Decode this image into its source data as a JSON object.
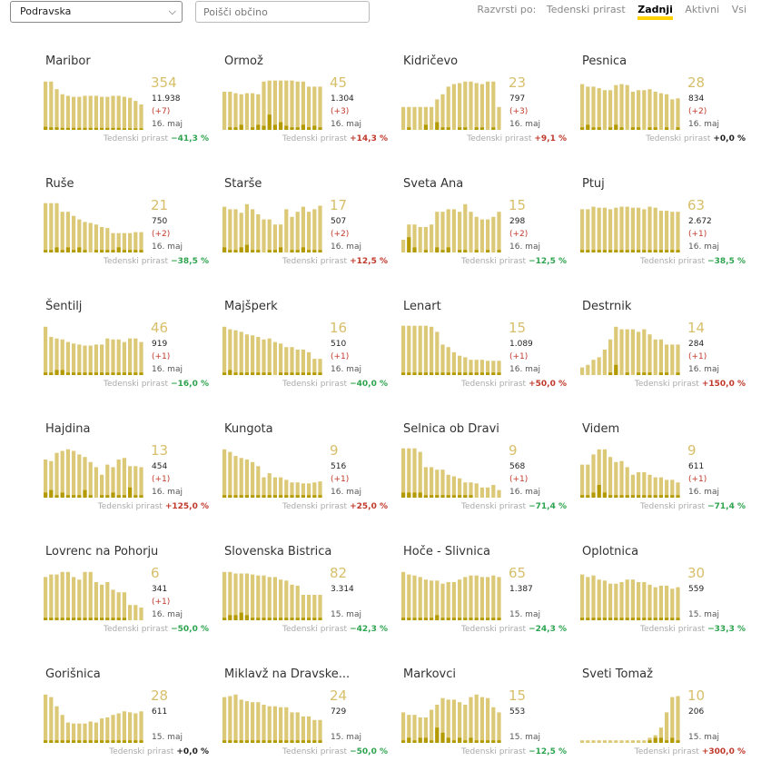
{
  "region_select": {
    "value": "Podravska"
  },
  "search": {
    "placeholder": "Poišči občino"
  },
  "sort": {
    "label": "Razvrsti po:",
    "options": [
      "Tedenski prirast",
      "Zadnji",
      "Aktivni",
      "Vsi"
    ],
    "active": 1
  },
  "week_label": "Tedenski prirast",
  "colors": {
    "active_bar": "#dcc978",
    "new_bar": "#b39a00",
    "accent": "#ffd200",
    "up": "#c0392b",
    "down": "#2ea44f"
  },
  "municipalities": [
    {
      "name": "Maribor",
      "active": "354",
      "total": "11.938",
      "delta": "(+7)",
      "date": "16. maj",
      "weekly": "−41,3 %",
      "trend": "down",
      "bars": [
        0.95,
        0.95,
        0.8,
        0.7,
        0.67,
        0.65,
        0.65,
        0.67,
        0.67,
        0.67,
        0.65,
        0.65,
        0.67,
        0.67,
        0.65,
        0.63,
        0.57,
        0.5
      ],
      "new": [
        0.06,
        0.05,
        0.05,
        0.04,
        0.04,
        0.04,
        0.04,
        0.04,
        0.04,
        0.04,
        0.04,
        0.04,
        0.04,
        0.04,
        0.03,
        0.03,
        0.03,
        0.03
      ]
    },
    {
      "name": "Ormož",
      "active": "45",
      "total": "1.304",
      "delta": "(+3)",
      "date": "16. maj",
      "weekly": "+14,3 %",
      "trend": "up",
      "bars": [
        0.75,
        0.75,
        0.72,
        0.7,
        0.72,
        0.72,
        0.7,
        0.95,
        0.97,
        0.97,
        0.97,
        0.97,
        0.97,
        0.95,
        0.95,
        0.85,
        0.85,
        0.85
      ],
      "new": [
        0,
        0.05,
        0.05,
        0.1,
        0,
        0.05,
        0.1,
        0.08,
        0.3,
        0.1,
        0.15,
        0.08,
        0.05,
        0.05,
        0.1,
        0.05,
        0.08,
        0.05
      ]
    },
    {
      "name": "Kidričevo",
      "active": "23",
      "total": "797",
      "delta": "(+3)",
      "date": "16. maj",
      "weekly": "+9,1 %",
      "trend": "up",
      "bars": [
        0.45,
        0.45,
        0.45,
        0.45,
        0.45,
        0.45,
        0.6,
        0.7,
        0.85,
        0.9,
        0.92,
        0.95,
        0.95,
        0.92,
        0.9,
        0.95,
        0.95,
        0.45
      ],
      "new": [
        0,
        0.05,
        0,
        0,
        0.1,
        0,
        0.15,
        0.05,
        0.05,
        0,
        0.05,
        0.05,
        0,
        0.05,
        0.05,
        0,
        0.05,
        0
      ]
    },
    {
      "name": "Pesnica",
      "active": "28",
      "total": "834",
      "delta": "(+2)",
      "date": "16. maj",
      "weekly": "+0,0 %",
      "trend": "zero",
      "bars": [
        0.9,
        0.85,
        0.85,
        0.82,
        0.78,
        0.78,
        0.88,
        0.9,
        0.88,
        0.75,
        0.78,
        0.78,
        0.8,
        0.75,
        0.72,
        0.7,
        0.6,
        0.62
      ],
      "new": [
        0.05,
        0.1,
        0.05,
        0.05,
        0,
        0.05,
        0.1,
        0.05,
        0,
        0.05,
        0.05,
        0,
        0.05,
        0.05,
        0,
        0.05,
        0,
        0.05
      ]
    },
    {
      "name": "Ruše",
      "active": "21",
      "total": "750",
      "delta": "(+2)",
      "date": "16. maj",
      "weekly": "−38,5 %",
      "trend": "down",
      "bars": [
        0.97,
        0.97,
        0.97,
        0.8,
        0.8,
        0.72,
        0.65,
        0.6,
        0.58,
        0.55,
        0.5,
        0.48,
        0.38,
        0.38,
        0.38,
        0.38,
        0.4,
        0.4
      ],
      "new": [
        0.05,
        0.05,
        0.1,
        0.05,
        0.1,
        0.05,
        0.1,
        0.05,
        0,
        0.05,
        0.05,
        0.05,
        0.05,
        0.1,
        0.05,
        0.05,
        0.05,
        0.05
      ]
    },
    {
      "name": "Starše",
      "active": "17",
      "total": "507",
      "delta": "(+2)",
      "date": "16. maj",
      "weekly": "+12,5 %",
      "trend": "up",
      "bars": [
        0.9,
        0.85,
        0.85,
        0.78,
        0.95,
        0.85,
        0.75,
        0.65,
        0.65,
        0.55,
        0.55,
        0.85,
        0.7,
        0.8,
        0.9,
        0.8,
        0.85,
        0.92
      ],
      "new": [
        0.1,
        0.05,
        0.05,
        0.1,
        0.15,
        0.05,
        0.05,
        0,
        0.05,
        0.05,
        0.1,
        0,
        0.05,
        0.05,
        0.1,
        0.05,
        0.05,
        0.05
      ]
    },
    {
      "name": "Sveta Ana",
      "active": "15",
      "total": "298",
      "delta": "(+2)",
      "date": "16. maj",
      "weekly": "−12,5 %",
      "trend": "down",
      "bars": [
        0.25,
        0.55,
        0.55,
        0.5,
        0.5,
        0.55,
        0.8,
        0.8,
        0.85,
        0.85,
        0.8,
        0.95,
        0.8,
        0.7,
        0.65,
        0.65,
        0.7,
        0.8
      ],
      "new": [
        0,
        0.3,
        0.1,
        0,
        0.05,
        0,
        0.1,
        0.05,
        0.1,
        0,
        0.05,
        0.05,
        0,
        0.05,
        0,
        0.05,
        0,
        0.05
      ]
    },
    {
      "name": "Ptuj",
      "active": "63",
      "total": "2.672",
      "delta": "(+1)",
      "date": "16. maj",
      "weekly": "−38,5 %",
      "trend": "down",
      "bars": [
        0.85,
        0.85,
        0.9,
        0.88,
        0.88,
        0.85,
        0.88,
        0.9,
        0.9,
        0.88,
        0.88,
        0.85,
        0.9,
        0.88,
        0.82,
        0.82,
        0.8,
        0.8
      ],
      "new": [
        0.05,
        0.05,
        0.05,
        0.05,
        0.05,
        0.05,
        0.05,
        0.05,
        0.05,
        0.05,
        0.05,
        0.05,
        0.05,
        0.05,
        0.05,
        0.05,
        0.05,
        0.05
      ]
    },
    {
      "name": "Šentilj",
      "active": "46",
      "total": "919",
      "delta": "(+1)",
      "date": "16. maj",
      "weekly": "−16,0 %",
      "trend": "down",
      "bars": [
        0.95,
        0.75,
        0.72,
        0.7,
        0.65,
        0.62,
        0.6,
        0.58,
        0.58,
        0.6,
        0.6,
        0.72,
        0.7,
        0.7,
        0.65,
        0.72,
        0.72,
        0.65
      ],
      "new": [
        0.05,
        0.05,
        0.1,
        0.1,
        0.05,
        0.05,
        0.05,
        0.05,
        0.05,
        0.05,
        0.05,
        0.05,
        0.05,
        0.05,
        0.05,
        0.05,
        0.05,
        0.05
      ]
    },
    {
      "name": "Majšperk",
      "active": "16",
      "total": "510",
      "delta": "(+1)",
      "date": "16. maj",
      "weekly": "−40,0 %",
      "trend": "down",
      "bars": [
        0.95,
        0.9,
        0.88,
        0.85,
        0.8,
        0.78,
        0.75,
        0.7,
        0.72,
        0.65,
        0.62,
        0.55,
        0.55,
        0.5,
        0.5,
        0.45,
        0.32,
        0.32
      ],
      "new": [
        0.05,
        0.1,
        0.05,
        0.05,
        0.05,
        0.05,
        0.05,
        0.05,
        0.05,
        0,
        0.05,
        0.05,
        0.05,
        0.05,
        0.05,
        0.05,
        0.05,
        0.05
      ]
    },
    {
      "name": "Lenart",
      "active": "15",
      "total": "1.089",
      "delta": "(+1)",
      "date": "16. maj",
      "weekly": "+50,0 %",
      "trend": "up",
      "bars": [
        0.97,
        0.97,
        0.97,
        0.97,
        0.97,
        0.95,
        0.85,
        0.6,
        0.55,
        0.45,
        0.38,
        0.35,
        0.3,
        0.3,
        0.3,
        0.28,
        0.28,
        0.28
      ],
      "new": [
        0.05,
        0.05,
        0.05,
        0.05,
        0.05,
        0.05,
        0.05,
        0.05,
        0.05,
        0.05,
        0.05,
        0.05,
        0.05,
        0.05,
        0.05,
        0.05,
        0.05,
        0.05
      ]
    },
    {
      "name": "Destrnik",
      "active": "14",
      "total": "284",
      "delta": "(+1)",
      "date": "16. maj",
      "weekly": "+150,0 %",
      "trend": "up",
      "bars": [
        0.15,
        0.2,
        0.3,
        0.35,
        0.5,
        0.7,
        0.95,
        0.9,
        0.9,
        0.9,
        0.85,
        0.9,
        0.8,
        0.7,
        0.7,
        0.6,
        0.6,
        0.6
      ],
      "new": [
        0,
        0,
        0,
        0,
        0,
        0.05,
        0.2,
        0,
        0.05,
        0,
        0.05,
        0.05,
        0.05,
        0,
        0.05,
        0.05,
        0,
        0.05
      ]
    },
    {
      "name": "Hajdina",
      "active": "13",
      "total": "454",
      "delta": "(+1)",
      "date": "16. maj",
      "weekly": "+125,0 %",
      "trend": "up",
      "bars": [
        0.75,
        0.72,
        0.88,
        0.92,
        0.95,
        0.92,
        0.85,
        0.8,
        0.7,
        0.6,
        0.45,
        0.65,
        0.6,
        0.75,
        0.78,
        0.62,
        0.62,
        0.6
      ],
      "new": [
        0.1,
        0.15,
        0.05,
        0.1,
        0.05,
        0.05,
        0.05,
        0.15,
        0.05,
        0,
        0.05,
        0.05,
        0.1,
        0.05,
        0.05,
        0.2,
        0.05,
        0.05
      ]
    },
    {
      "name": "Kungota",
      "active": "9",
      "total": "516",
      "delta": "(+1)",
      "date": "16. maj",
      "weekly": "+25,0 %",
      "trend": "up",
      "bars": [
        0.95,
        0.9,
        0.82,
        0.78,
        0.75,
        0.7,
        0.62,
        0.4,
        0.48,
        0.4,
        0.4,
        0.35,
        0.3,
        0.3,
        0.28,
        0.28,
        0.3,
        0.32
      ],
      "new": [
        0.05,
        0.05,
        0.05,
        0.05,
        0.05,
        0.05,
        0.05,
        0.05,
        0.05,
        0.05,
        0.05,
        0.05,
        0.05,
        0.05,
        0.05,
        0.05,
        0.05,
        0.05
      ]
    },
    {
      "name": "Selnica ob Dravi",
      "active": "9",
      "total": "568",
      "delta": "(+1)",
      "date": "16. maj",
      "weekly": "−71,4 %",
      "trend": "down",
      "bars": [
        0.97,
        0.97,
        0.97,
        0.9,
        0.6,
        0.6,
        0.55,
        0.55,
        0.45,
        0.42,
        0.38,
        0.3,
        0.3,
        0.28,
        0.2,
        0.2,
        0.25,
        0.15
      ],
      "new": [
        0.1,
        0.1,
        0.1,
        0.1,
        0.05,
        0.05,
        0.05,
        0.05,
        0.05,
        0.05,
        0.05,
        0.05,
        0.05,
        0,
        0,
        0,
        0,
        0
      ]
    },
    {
      "name": "Videm",
      "active": "9",
      "total": "611",
      "delta": "(+1)",
      "date": "16. maj",
      "weekly": "−71,4 %",
      "trend": "down",
      "bars": [
        0.65,
        0.65,
        0.85,
        0.95,
        0.95,
        0.8,
        0.7,
        0.72,
        0.6,
        0.45,
        0.5,
        0.5,
        0.45,
        0.4,
        0.4,
        0.35,
        0.35,
        0.3
      ],
      "new": [
        0.05,
        0.05,
        0.1,
        0.25,
        0.1,
        0.05,
        0.05,
        0.05,
        0.05,
        0.05,
        0.05,
        0.05,
        0.05,
        0.05,
        0.05,
        0.05,
        0.05,
        0.05
      ]
    },
    {
      "name": "Lovrenc na Pohorju",
      "active": "6",
      "total": "341",
      "delta": "(+1)",
      "date": "16. maj",
      "weekly": "−50,0 %",
      "trend": "down",
      "bars": [
        0.85,
        0.9,
        0.9,
        0.95,
        0.95,
        0.85,
        0.8,
        0.95,
        0.95,
        0.75,
        0.7,
        0.75,
        0.6,
        0.55,
        0.55,
        0.3,
        0.3,
        0.25
      ],
      "new": [
        0.05,
        0.05,
        0.05,
        0.05,
        0.05,
        0.05,
        0.05,
        0.05,
        0.05,
        0.05,
        0.05,
        0.05,
        0.05,
        0.05,
        0.05,
        0,
        0,
        0
      ]
    },
    {
      "name": "Slovenska Bistrica",
      "active": "82",
      "total": "3.314",
      "delta": "",
      "date": "15. maj",
      "weekly": "−42,3 %",
      "trend": "down",
      "bars": [
        0.95,
        0.95,
        0.92,
        0.92,
        0.92,
        0.9,
        0.88,
        0.88,
        0.85,
        0.85,
        0.8,
        0.78,
        0.7,
        0.68,
        0.5,
        0.5,
        0.5,
        0.5
      ],
      "new": [
        0.05,
        0.1,
        0.1,
        0.15,
        0.1,
        0.05,
        0.05,
        0.05,
        0.05,
        0.05,
        0.05,
        0.05,
        0.05,
        0.05,
        0.05,
        0.05,
        0.05,
        0.05
      ]
    },
    {
      "name": "Hoče - Slivnica",
      "active": "65",
      "total": "1.387",
      "delta": "",
      "date": "15. maj",
      "weekly": "−24,3 %",
      "trend": "down",
      "bars": [
        0.95,
        0.9,
        0.88,
        0.85,
        0.8,
        0.78,
        0.78,
        0.72,
        0.75,
        0.75,
        0.8,
        0.85,
        0.88,
        0.88,
        0.85,
        0.85,
        0.88,
        0.85
      ],
      "new": [
        0.05,
        0.05,
        0.05,
        0.05,
        0.05,
        0.05,
        0.1,
        0.05,
        0.05,
        0.05,
        0.05,
        0.05,
        0.05,
        0.05,
        0.05,
        0.05,
        0.05,
        0.05
      ]
    },
    {
      "name": "Oplotnica",
      "active": "30",
      "total": "559",
      "delta": "",
      "date": "15. maj",
      "weekly": "−33,3 %",
      "trend": "down",
      "bars": [
        0.9,
        0.85,
        0.88,
        0.8,
        0.78,
        0.72,
        0.72,
        0.75,
        0.8,
        0.8,
        0.75,
        0.75,
        0.7,
        0.65,
        0.68,
        0.68,
        0.62,
        0.65
      ],
      "new": [
        0.05,
        0.05,
        0.05,
        0.05,
        0.05,
        0.05,
        0.05,
        0.05,
        0.05,
        0.05,
        0.05,
        0.05,
        0.05,
        0.05,
        0.05,
        0.05,
        0.05,
        0.05
      ]
    },
    {
      "name": "Gorišnica",
      "active": "28",
      "total": "611",
      "delta": "",
      "date": "15. maj",
      "weekly": "+0,0 %",
      "trend": "zero",
      "bars": [
        0.95,
        0.9,
        0.72,
        0.55,
        0.4,
        0.38,
        0.38,
        0.38,
        0.42,
        0.4,
        0.48,
        0.5,
        0.55,
        0.58,
        0.62,
        0.6,
        0.58,
        0.62
      ],
      "new": [
        0.05,
        0.05,
        0.05,
        0.05,
        0.05,
        0.05,
        0.05,
        0.05,
        0.05,
        0.05,
        0.05,
        0.05,
        0.05,
        0.05,
        0.05,
        0.05,
        0.05,
        0.05
      ]
    },
    {
      "name": "Miklavž na Dravske...",
      "active": "24",
      "total": "729",
      "delta": "",
      "date": "15. maj",
      "weekly": "−50,0 %",
      "trend": "down",
      "bars": [
        0.9,
        0.92,
        0.95,
        0.85,
        0.82,
        0.8,
        0.8,
        0.75,
        0.72,
        0.72,
        0.7,
        0.7,
        0.6,
        0.6,
        0.52,
        0.52,
        0.45,
        0.45
      ],
      "new": [
        0.05,
        0.05,
        0.05,
        0.05,
        0.05,
        0.05,
        0.05,
        0.05,
        0.05,
        0.05,
        0.05,
        0.05,
        0.05,
        0.05,
        0.05,
        0.05,
        0.05,
        0.05
      ]
    },
    {
      "name": "Markovci",
      "active": "15",
      "total": "553",
      "delta": "",
      "date": "15. maj",
      "weekly": "−12,5 %",
      "trend": "down",
      "bars": [
        0.6,
        0.55,
        0.55,
        0.5,
        0.5,
        0.65,
        0.75,
        0.88,
        0.85,
        0.85,
        0.8,
        0.75,
        0.9,
        0.95,
        0.9,
        0.88,
        0.7,
        0.6
      ],
      "new": [
        0.05,
        0.1,
        0.05,
        0.1,
        0.1,
        0.05,
        0.3,
        0.2,
        0.1,
        0.05,
        0.1,
        0.05,
        0.1,
        0.05,
        0.05,
        0.05,
        0.05,
        0.05
      ]
    },
    {
      "name": "Sveti Tomaž",
      "active": "10",
      "total": "206",
      "delta": "",
      "date": "15. maj",
      "weekly": "+300,0 %",
      "trend": "up",
      "bars": [
        0.05,
        0.05,
        0.05,
        0.05,
        0.05,
        0.05,
        0.05,
        0.05,
        0.05,
        0.05,
        0.05,
        0.05,
        0.1,
        0.15,
        0.3,
        0.6,
        0.9,
        0.92
      ],
      "new": [
        0,
        0,
        0,
        0,
        0,
        0,
        0,
        0,
        0,
        0,
        0,
        0,
        0.05,
        0.1,
        0.1,
        0.05,
        0.1,
        0.05
      ]
    }
  ]
}
